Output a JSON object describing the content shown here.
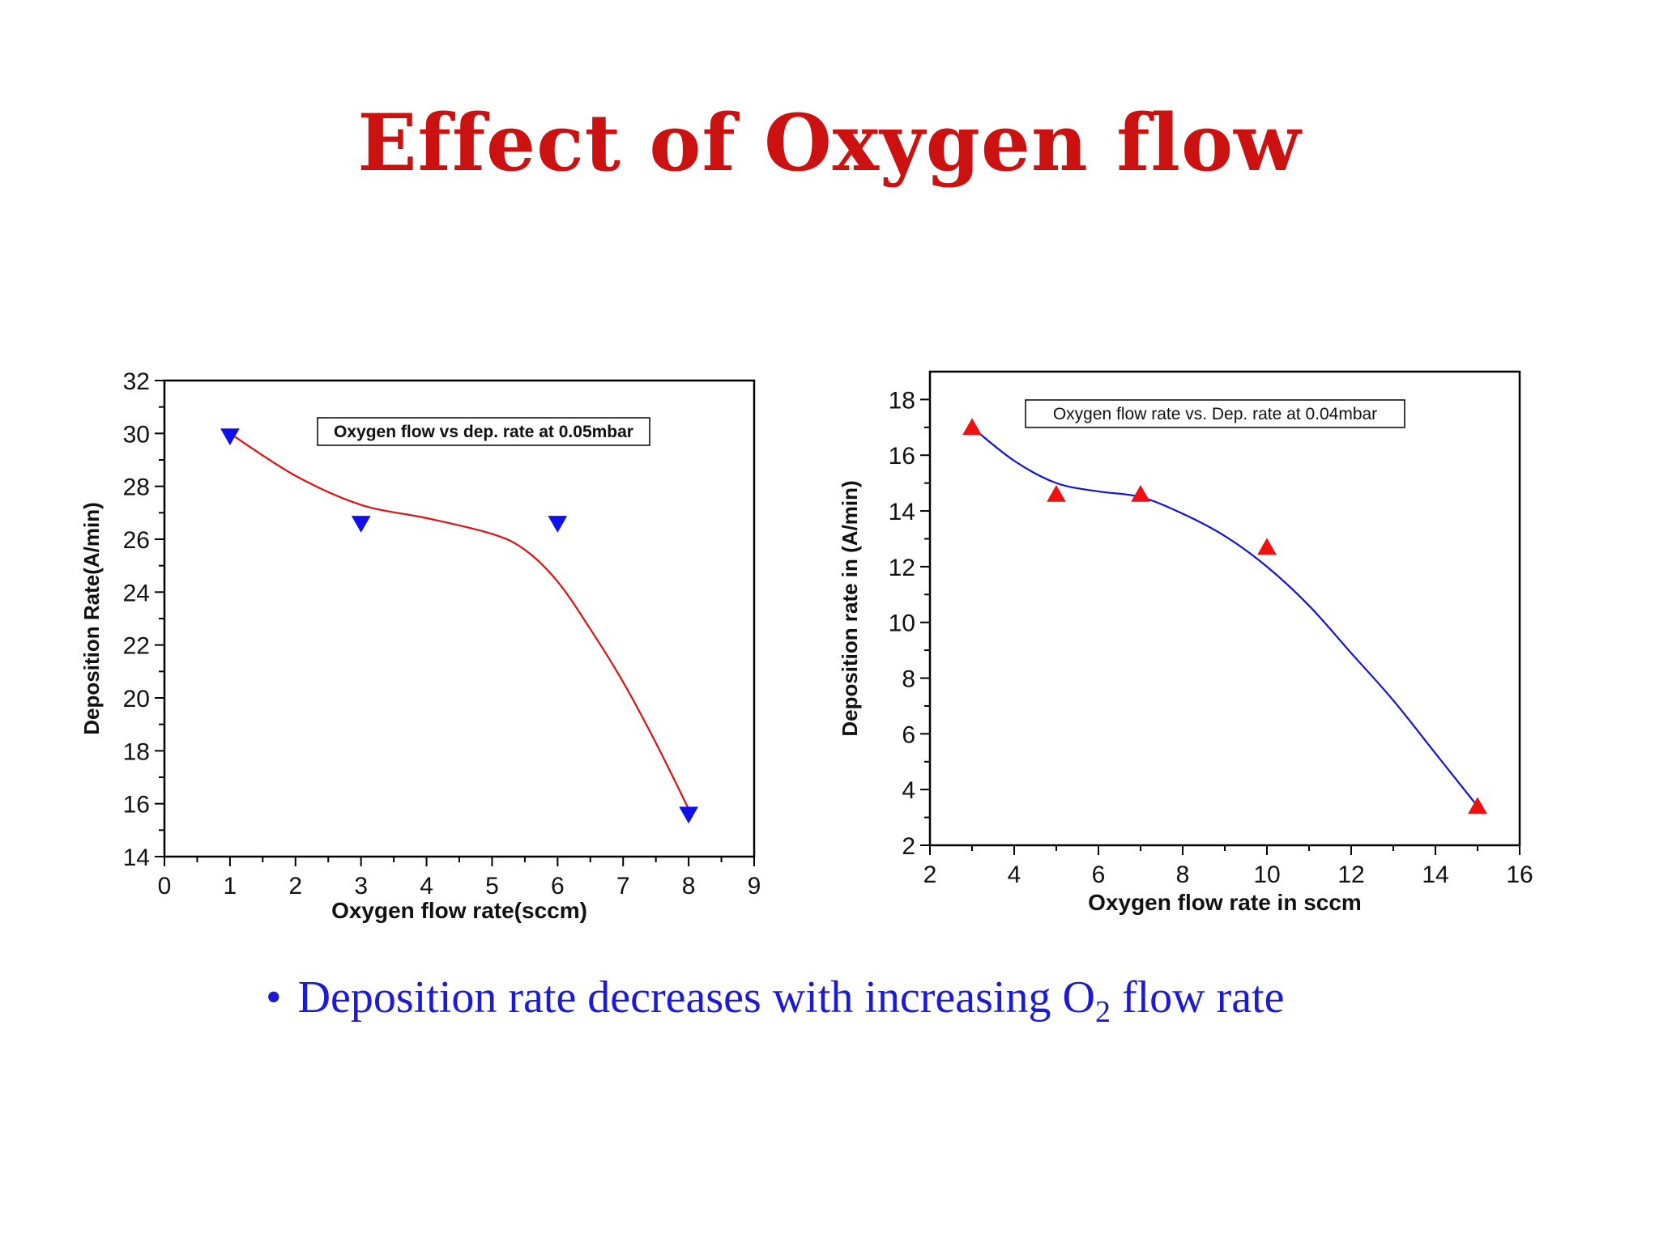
{
  "title": "Effect of Oxygen flow",
  "bullet": {
    "marker": "•",
    "text_before": "Deposition rate decreases with increasing O",
    "subscript": "2",
    "text_after": " flow rate"
  },
  "chart_data": [
    {
      "type": "scatter",
      "title": "Oxygen flow vs dep. rate at 0.05mbar",
      "xlabel": "Oxygen flow rate(sccm)",
      "ylabel": "Deposition Rate(A/min)",
      "xlim": [
        0,
        9
      ],
      "ylim": [
        14,
        32
      ],
      "xticks": [
        0,
        1,
        2,
        3,
        4,
        5,
        6,
        7,
        8,
        9
      ],
      "yticks": [
        14,
        16,
        18,
        20,
        22,
        24,
        26,
        28,
        30,
        32
      ],
      "marker": "triangle-down",
      "marker_color": "#1010ee",
      "fit_color": "#dd1111",
      "series": [
        {
          "name": "data",
          "x": [
            1,
            3,
            6,
            8
          ],
          "y": [
            29.9,
            26.6,
            26.6,
            15.6
          ]
        }
      ],
      "fit": {
        "x": [
          1,
          2,
          3,
          4,
          5,
          5.5,
          6,
          6.5,
          7,
          7.5,
          8
        ],
        "y": [
          30.0,
          28.4,
          27.3,
          26.8,
          26.2,
          25.6,
          24.4,
          22.6,
          20.6,
          18.3,
          15.8
        ]
      }
    },
    {
      "type": "scatter",
      "title": "Oxygen flow rate vs. Dep. rate at 0.04mbar",
      "xlabel": "Oxygen flow rate in sccm",
      "ylabel": "Deposition rate in (A/min)",
      "xlim": [
        2,
        16
      ],
      "ylim": [
        2,
        19
      ],
      "xticks": [
        2,
        4,
        6,
        8,
        10,
        12,
        14,
        16
      ],
      "yticks": [
        2,
        4,
        6,
        8,
        10,
        12,
        14,
        16,
        18
      ],
      "marker": "triangle-up",
      "marker_color": "#ee1111",
      "fit_color": "#1111dd",
      "series": [
        {
          "name": "data",
          "x": [
            3,
            5,
            7,
            10,
            15
          ],
          "y": [
            17.0,
            14.6,
            14.6,
            12.7,
            3.4
          ]
        }
      ],
      "fit": {
        "x": [
          3,
          4,
          5,
          6,
          7,
          8,
          9,
          10,
          11,
          12,
          13,
          14,
          15
        ],
        "y": [
          17.0,
          15.8,
          15.0,
          14.7,
          14.5,
          13.9,
          13.1,
          12.0,
          10.6,
          8.9,
          7.2,
          5.3,
          3.4
        ]
      }
    }
  ]
}
